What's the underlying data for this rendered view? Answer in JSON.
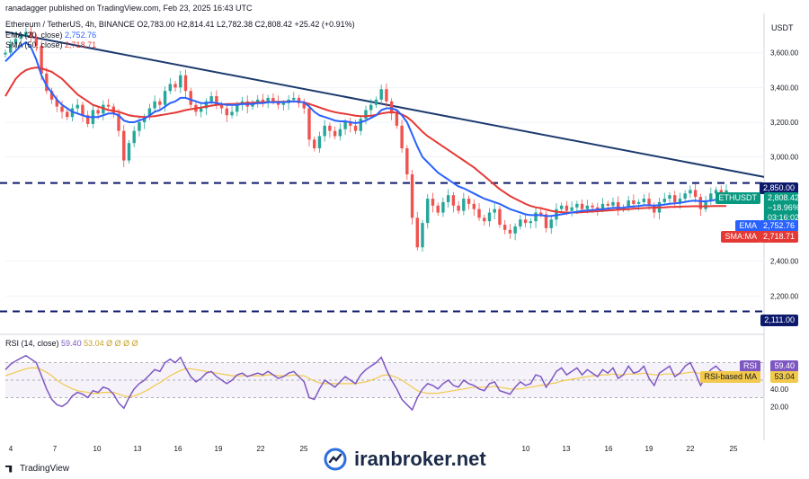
{
  "header": {
    "published": "ranadagger published on TradingView.com, Feb 23, 2025 16:43 UTC",
    "symbol": "Ethereum / TetherUS, 4h, BINANCE",
    "ohlc": "O2,783.00  H2,814.41  L2,782.38  C2,808.42  +25.42 (+0.91%)",
    "ema_label": "EMA (20, close)",
    "ema_value": "2,752.76",
    "sma_label": "SMA (50, close)",
    "sma_value": "2,718.71",
    "rsi_label": "RSI (14, close)",
    "rsi_value": "59.40",
    "rsi_extra": "53.04  Ø  Ø  Ø  Ø"
  },
  "axis": {
    "currency": "USDT",
    "price_ticks": [
      "3,600.00",
      "3,400.00",
      "3,200.00",
      "3,000.00",
      "2,400.00",
      "2,200.00"
    ],
    "rsi_ticks": [
      "40.00",
      "20.00"
    ],
    "date_ticks": [
      "4",
      "7",
      "10",
      "13",
      "16",
      "19",
      "22",
      "25",
      "10",
      "13",
      "16",
      "19",
      "22",
      "25"
    ]
  },
  "tags": {
    "resistance": "2,850.00",
    "symbol": "ETHUSDT",
    "price": "2,808.42",
    "change": "−18.96%",
    "timer": "03:16:02",
    "ema_tag": "EMA",
    "ema_val": "2,752.76",
    "sma_tag": "SMA:MA",
    "sma_val": "2,718.71",
    "support": "2,111.00",
    "rsi_tag": "RSI",
    "rsi_val": "59.40",
    "rsi_ma_tag": "RSI-based MA",
    "rsi_ma_val": "53.04"
  },
  "footer": {
    "brand": "TradingView",
    "watermark": "iranbroker.net"
  },
  "colors": {
    "up": "#26a69a",
    "down": "#ef5350",
    "ema": "#2962ff",
    "sma": "#e53935",
    "trendline": "#1c3a6e",
    "hline": "#0d1a6b",
    "rsi": "#7e57c2",
    "rsi_ma": "#f2c94c"
  },
  "chart_data": {
    "type": "candlestick",
    "timeframe": "4h",
    "symbol": "ETHUSDT",
    "price_axis": [
      2000,
      3800
    ],
    "rsi_axis": [
      10,
      90
    ],
    "horizontal_levels": [
      2850,
      2111
    ],
    "trendline": {
      "from": 3720,
      "to": 2885
    },
    "closes": [
      3600,
      3650,
      3680,
      3700,
      3720,
      3690,
      3640,
      3480,
      3380,
      3330,
      3290,
      3260,
      3230,
      3280,
      3300,
      3240,
      3190,
      3270,
      3250,
      3300,
      3290,
      3250,
      3150,
      2980,
      3080,
      3150,
      3200,
      3230,
      3280,
      3320,
      3300,
      3380,
      3420,
      3400,
      3470,
      3380,
      3300,
      3260,
      3280,
      3320,
      3350,
      3300,
      3280,
      3240,
      3260,
      3300,
      3320,
      3290,
      3310,
      3330,
      3320,
      3340,
      3320,
      3300,
      3310,
      3330,
      3340,
      3310,
      3280,
      3100,
      3050,
      3120,
      3180,
      3150,
      3120,
      3160,
      3200,
      3180,
      3150,
      3220,
      3270,
      3300,
      3330,
      3390,
      3320,
      3250,
      3180,
      3050,
      2900,
      2650,
      2480,
      2620,
      2760,
      2720,
      2680,
      2740,
      2780,
      2720,
      2690,
      2760,
      2730,
      2700,
      2650,
      2630,
      2680,
      2700,
      2610,
      2580,
      2560,
      2600,
      2640,
      2620,
      2630,
      2680,
      2670,
      2590,
      2640,
      2700,
      2720,
      2690,
      2710,
      2730,
      2700,
      2720,
      2710,
      2700,
      2730,
      2720,
      2740,
      2700,
      2710,
      2750,
      2730,
      2740,
      2760,
      2720,
      2680,
      2740,
      2760,
      2780,
      2740,
      2760,
      2790,
      2810,
      2770,
      2700,
      2750,
      2790,
      2810,
      2790,
      2808
    ],
    "ema": [
      3550,
      3580,
      3610,
      3640,
      3660,
      3630,
      3560,
      3470,
      3410,
      3370,
      3330,
      3300,
      3280,
      3260,
      3250,
      3240,
      3230,
      3230,
      3230,
      3240,
      3250,
      3250,
      3240,
      3210,
      3200,
      3200,
      3210,
      3220,
      3240,
      3260,
      3270,
      3290,
      3310,
      3320,
      3340,
      3340,
      3330,
      3320,
      3310,
      3310,
      3315,
      3310,
      3305,
      3300,
      3300,
      3300,
      3305,
      3305,
      3305,
      3310,
      3310,
      3315,
      3315,
      3315,
      3315,
      3318,
      3320,
      3318,
      3315,
      3290,
      3260,
      3240,
      3230,
      3220,
      3210,
      3205,
      3205,
      3200,
      3195,
      3200,
      3210,
      3225,
      3240,
      3270,
      3280,
      3280,
      3270,
      3240,
      3200,
      3130,
      3060,
      3000,
      2970,
      2940,
      2910,
      2890,
      2870,
      2850,
      2830,
      2820,
      2805,
      2790,
      2775,
      2760,
      2750,
      2740,
      2730,
      2715,
      2700,
      2690,
      2680,
      2670,
      2665,
      2665,
      2665,
      2660,
      2660,
      2665,
      2670,
      2675,
      2680,
      2685,
      2690,
      2692,
      2695,
      2697,
      2700,
      2703,
      2707,
      2707,
      2708,
      2712,
      2715,
      2718,
      2722,
      2722,
      2720,
      2722,
      2726,
      2731,
      2733,
      2736,
      2741,
      2747,
      2749,
      2745,
      2745,
      2749,
      2754,
      2757,
      2752
    ],
    "sma": [
      3350,
      3400,
      3450,
      3480,
      3500,
      3510,
      3515,
      3510,
      3500,
      3490,
      3470,
      3450,
      3420,
      3390,
      3360,
      3340,
      3320,
      3300,
      3290,
      3280,
      3270,
      3265,
      3260,
      3250,
      3240,
      3235,
      3232,
      3230,
      3232,
      3235,
      3240,
      3245,
      3250,
      3255,
      3262,
      3270,
      3275,
      3280,
      3285,
      3290,
      3295,
      3300,
      3302,
      3305,
      3305,
      3306,
      3308,
      3310,
      3312,
      3314,
      3315,
      3316,
      3317,
      3318,
      3318,
      3319,
      3320,
      3318,
      3315,
      3305,
      3295,
      3285,
      3275,
      3265,
      3258,
      3252,
      3248,
      3243,
      3238,
      3235,
      3235,
      3238,
      3242,
      3250,
      3255,
      3258,
      3255,
      3245,
      3230,
      3205,
      3175,
      3145,
      3120,
      3100,
      3080,
      3060,
      3040,
      3020,
      3000,
      2980,
      2960,
      2940,
      2915,
      2890,
      2865,
      2840,
      2815,
      2795,
      2775,
      2760,
      2745,
      2730,
      2718,
      2710,
      2705,
      2698,
      2690,
      2685,
      2682,
      2680,
      2680,
      2680,
      2682,
      2684,
      2686,
      2688,
      2690,
      2692,
      2694,
      2696,
      2698,
      2700,
      2702,
      2704,
      2706,
      2707,
      2708,
      2709,
      2710,
      2712,
      2713,
      2714,
      2715,
      2716,
      2717,
      2716,
      2716,
      2717,
      2718,
      2718,
      2718
    ],
    "rsi": [
      62,
      68,
      72,
      75,
      78,
      74,
      70,
      55,
      40,
      28,
      22,
      20,
      24,
      32,
      36,
      34,
      30,
      38,
      36,
      42,
      40,
      34,
      24,
      18,
      30,
      40,
      46,
      50,
      56,
      62,
      60,
      70,
      74,
      70,
      76,
      64,
      54,
      48,
      52,
      58,
      60,
      54,
      50,
      46,
      50,
      56,
      58,
      54,
      56,
      58,
      56,
      60,
      56,
      52,
      54,
      58,
      60,
      54,
      48,
      30,
      28,
      40,
      50,
      46,
      42,
      48,
      54,
      50,
      46,
      56,
      62,
      66,
      70,
      76,
      62,
      50,
      40,
      28,
      22,
      16,
      30,
      40,
      46,
      44,
      40,
      46,
      50,
      44,
      42,
      50,
      46,
      44,
      40,
      38,
      46,
      48,
      38,
      36,
      34,
      42,
      48,
      44,
      46,
      56,
      54,
      42,
      50,
      60,
      64,
      56,
      60,
      64,
      56,
      62,
      58,
      54,
      62,
      58,
      64,
      52,
      56,
      66,
      58,
      60,
      66,
      52,
      44,
      58,
      62,
      66,
      54,
      58,
      66,
      70,
      58,
      44,
      54,
      62,
      66,
      60,
      59
    ],
    "rsi_ma": [
      55,
      57,
      59,
      61,
      63,
      64,
      64,
      62,
      59,
      55,
      50,
      46,
      43,
      40,
      38,
      37,
      36,
      35,
      35,
      36,
      36,
      36,
      34,
      32,
      31,
      32,
      34,
      37,
      40,
      44,
      47,
      51,
      55,
      58,
      61,
      63,
      63,
      62,
      61,
      60,
      59,
      58,
      57,
      56,
      55,
      55,
      55,
      55,
      55,
      55,
      55,
      56,
      56,
      55,
      55,
      55,
      56,
      55,
      55,
      52,
      49,
      47,
      46,
      46,
      46,
      46,
      46,
      46,
      46,
      47,
      48,
      50,
      52,
      55,
      56,
      55,
      53,
      50,
      46,
      42,
      38,
      36,
      35,
      35,
      35,
      36,
      37,
      38,
      39,
      40,
      41,
      42,
      42,
      42,
      42,
      43,
      42,
      41,
      40,
      40,
      40,
      41,
      42,
      43,
      44,
      45,
      46,
      47,
      49,
      50,
      51,
      52,
      53,
      54,
      55,
      55,
      56,
      56,
      57,
      56,
      56,
      57,
      57,
      57,
      58,
      57,
      56,
      56,
      57,
      57,
      57,
      57,
      58,
      59,
      59,
      57,
      57,
      57,
      58,
      58,
      53
    ]
  }
}
